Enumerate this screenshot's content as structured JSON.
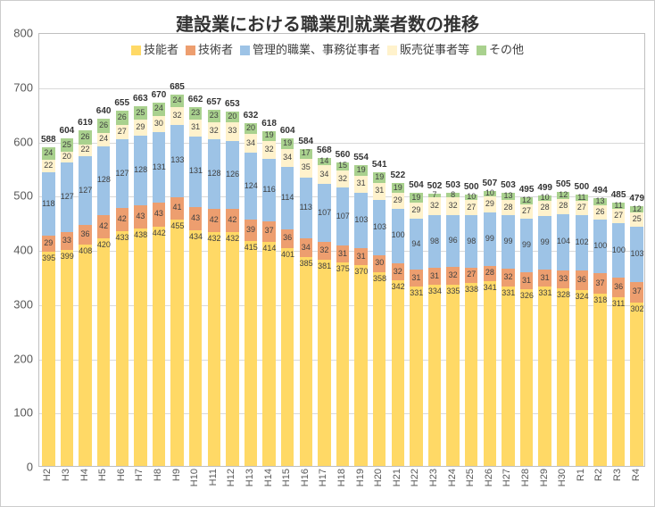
{
  "chart": {
    "type": "stacked-bar",
    "title": "建設業における職業別就業者数の推移",
    "title_fontsize": 20,
    "label_fontsize": 13,
    "data_label_fontsize": 9,
    "background_color": "#ffffff",
    "grid_color": "#d9d9d9",
    "border_color": "#bfbfbf",
    "text_color": "#595959",
    "ylim": [
      0,
      800
    ],
    "ytick_step": 100,
    "bar_width_ratio": 0.7,
    "legend": {
      "position": "top",
      "items": [
        {
          "label": "技能者",
          "color": "#ffd966"
        },
        {
          "label": "技術者",
          "color": "#ed9e6f"
        },
        {
          "label": "管理的職業、事務従事者",
          "color": "#9dc3e6"
        },
        {
          "label": "販売従事者等",
          "color": "#fff2cc"
        },
        {
          "label": "その他",
          "color": "#a9d18e"
        }
      ]
    },
    "series_colors": [
      "#ffd966",
      "#ed9e6f",
      "#9dc3e6",
      "#fff2cc",
      "#a9d18e"
    ],
    "categories": [
      "H2",
      "H3",
      "H4",
      "H5",
      "H6",
      "H7",
      "H8",
      "H9",
      "H10",
      "H11",
      "H12",
      "H13",
      "H14",
      "H15",
      "H16",
      "H17",
      "H18",
      "H19",
      "H20",
      "H21",
      "H22",
      "H23",
      "H24",
      "H25",
      "H26",
      "H27",
      "H28",
      "H29",
      "H30",
      "R1",
      "R2",
      "R3",
      "R4"
    ],
    "data": [
      {
        "cat": "H2",
        "total": 588,
        "seg": [
          395,
          29,
          118,
          22,
          24
        ]
      },
      {
        "cat": "H3",
        "total": 604,
        "seg": [
          399,
          33,
          127,
          20,
          25
        ]
      },
      {
        "cat": "H4",
        "total": 619,
        "seg": [
          408,
          36,
          127,
          22,
          26
        ]
      },
      {
        "cat": "H5",
        "total": 640,
        "seg": [
          420,
          42,
          128,
          24,
          26
        ]
      },
      {
        "cat": "H6",
        "total": 655,
        "seg": [
          433,
          42,
          127,
          27,
          26
        ]
      },
      {
        "cat": "H7",
        "total": 663,
        "seg": [
          438,
          43,
          128,
          29,
          25
        ]
      },
      {
        "cat": "H8",
        "total": 670,
        "seg": [
          442,
          43,
          131,
          30,
          24
        ]
      },
      {
        "cat": "H9",
        "total": 685,
        "seg": [
          455,
          41,
          133,
          32,
          24
        ]
      },
      {
        "cat": "H10",
        "total": 662,
        "seg": [
          434,
          43,
          131,
          31,
          23
        ]
      },
      {
        "cat": "H11",
        "total": 657,
        "seg": [
          432,
          42,
          128,
          32,
          23
        ]
      },
      {
        "cat": "H12",
        "total": 653,
        "seg": [
          432,
          42,
          126,
          33,
          20
        ]
      },
      {
        "cat": "H13",
        "total": 632,
        "seg": [
          415,
          39,
          124,
          34,
          20
        ]
      },
      {
        "cat": "H14",
        "total": 618,
        "seg": [
          414,
          37,
          116,
          32,
          19
        ]
      },
      {
        "cat": "H15",
        "total": 604,
        "seg": [
          401,
          36,
          114,
          34,
          19
        ]
      },
      {
        "cat": "H16",
        "total": 584,
        "seg": [
          385,
          34,
          113,
          35,
          17
        ]
      },
      {
        "cat": "H17",
        "total": 568,
        "seg": [
          381,
          32,
          107,
          34,
          14
        ]
      },
      {
        "cat": "H18",
        "total": 560,
        "seg": [
          375,
          31,
          107,
          32,
          15
        ]
      },
      {
        "cat": "H19",
        "total": 554,
        "seg": [
          370,
          31,
          103,
          31,
          19
        ]
      },
      {
        "cat": "H20",
        "total": 541,
        "seg": [
          358,
          30,
          103,
          31,
          19
        ]
      },
      {
        "cat": "H21",
        "total": 522,
        "seg": [
          342,
          32,
          100,
          29,
          19
        ]
      },
      {
        "cat": "H22",
        "total": 504,
        "seg": [
          331,
          31,
          94,
          29,
          19
        ]
      },
      {
        "cat": "H23",
        "total": 502,
        "seg": [
          334,
          31,
          98,
          32,
          7
        ]
      },
      {
        "cat": "H24",
        "total": 503,
        "seg": [
          335,
          32,
          96,
          32,
          8
        ]
      },
      {
        "cat": "H25",
        "total": 500,
        "seg": [
          338,
          27,
          98,
          27,
          10
        ]
      },
      {
        "cat": "H26",
        "total": 507,
        "seg": [
          341,
          28,
          99,
          29,
          10
        ]
      },
      {
        "cat": "H27",
        "total": 503,
        "seg": [
          331,
          32,
          99,
          28,
          13
        ]
      },
      {
        "cat": "H28",
        "total": 495,
        "seg": [
          326,
          31,
          99,
          27,
          12
        ]
      },
      {
        "cat": "H29",
        "total": 499,
        "seg": [
          331,
          31,
          99,
          28,
          10
        ]
      },
      {
        "cat": "H30",
        "total": 505,
        "seg": [
          328,
          33,
          104,
          28,
          12
        ]
      },
      {
        "cat": "R1",
        "total": 500,
        "seg": [
          324,
          36,
          102,
          27,
          11
        ]
      },
      {
        "cat": "R2",
        "total": 494,
        "seg": [
          318,
          37,
          100,
          26,
          13
        ]
      },
      {
        "cat": "R3",
        "total": 485,
        "seg": [
          311,
          36,
          100,
          27,
          11
        ]
      },
      {
        "cat": "R4",
        "total": 479,
        "seg": [
          302,
          37,
          103,
          25,
          12
        ]
      }
    ]
  }
}
